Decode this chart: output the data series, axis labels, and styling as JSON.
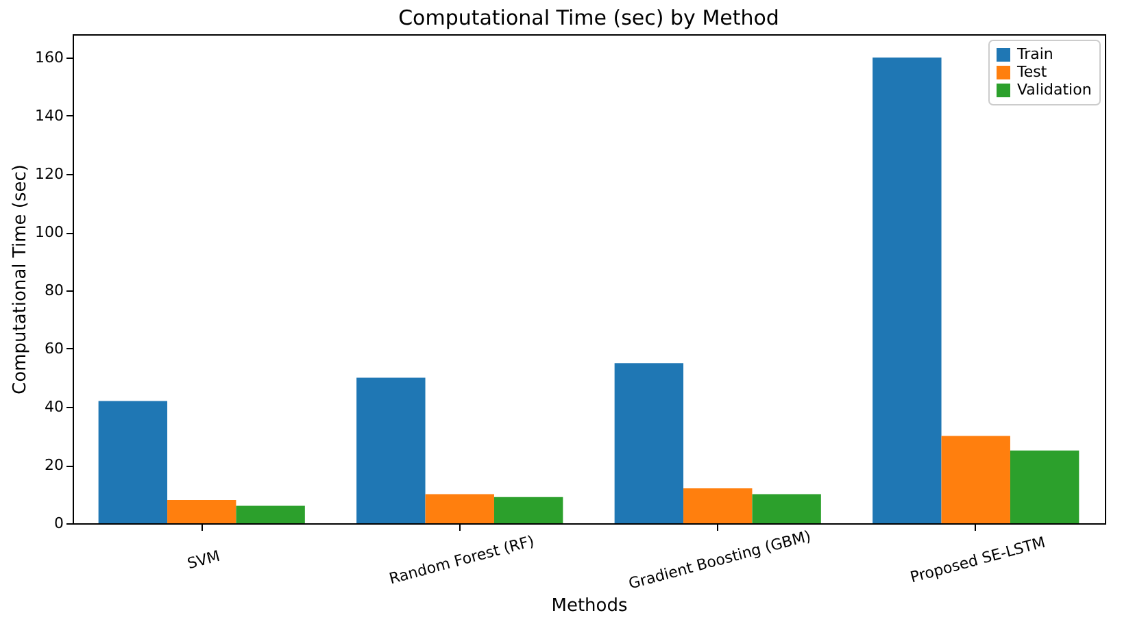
{
  "chart_data": {
    "type": "bar",
    "title": "Computational Time (sec) by Method",
    "xlabel": "Methods",
    "ylabel": "Computational Time (sec)",
    "categories": [
      "SVM",
      "Random Forest (RF)",
      "Gradient Boosting (GBM)",
      "Proposed SE-LSTM"
    ],
    "series": [
      {
        "name": "Train",
        "color": "#1f77b4",
        "values": [
          42,
          50,
          55,
          160
        ]
      },
      {
        "name": "Test",
        "color": "#ff7f0e",
        "values": [
          8,
          10,
          12,
          30
        ]
      },
      {
        "name": "Validation",
        "color": "#2ca02c",
        "values": [
          6,
          9,
          10,
          25
        ]
      }
    ],
    "ylim": [
      0,
      168
    ],
    "yticks": [
      0,
      20,
      40,
      60,
      80,
      100,
      120,
      140,
      160
    ],
    "grid": false,
    "legend": "top right"
  }
}
